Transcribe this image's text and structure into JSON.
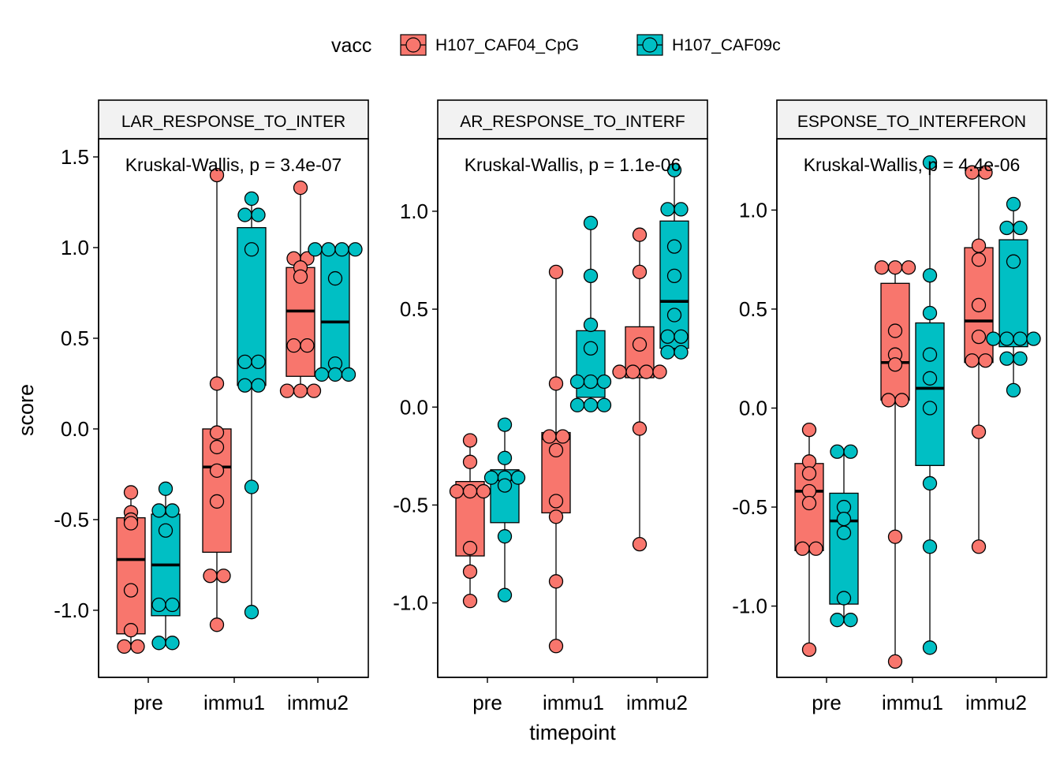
{
  "legend": {
    "title": "vacc",
    "items": [
      {
        "name": "H107_CAF04_CpG",
        "color": "#F8766D"
      },
      {
        "name": "H107_CAF09c",
        "color": "#00BFC4"
      }
    ]
  },
  "chart_data": {
    "type": "boxplot",
    "xlabel": "timepoint",
    "ylabel": "score",
    "categories": [
      "pre",
      "immu1",
      "immu2"
    ],
    "groups": [
      "H107_CAF04_CpG",
      "H107_CAF09c"
    ],
    "colors": {
      "H107_CAF04_CpG": "#F8766D",
      "H107_CAF09c": "#00BFC4"
    },
    "panels": [
      {
        "strip": "LAR_RESPONSE_TO_INTER",
        "stat": "Kruskal-Wallis, p = 3.4e-07",
        "ylim": [
          -1.37,
          1.6
        ],
        "yticks": [
          1.5,
          1.0,
          0.5,
          0.0,
          -0.5,
          -1.0
        ],
        "ytick_labels": [
          "1.5",
          "1.0",
          "0.5",
          "0.0",
          "-0.5",
          "-1.0"
        ],
        "boxes": [
          {
            "category": "pre",
            "group": "H107_CAF04_CpG",
            "q1": -1.13,
            "median": -0.72,
            "q3": -0.49,
            "lo": -1.2,
            "hi": -0.35,
            "points": [
              -0.35,
              -0.46,
              -0.5,
              -0.52,
              -0.89,
              -1.11,
              -1.2,
              -1.2
            ]
          },
          {
            "category": "pre",
            "group": "H107_CAF09c",
            "q1": -1.03,
            "median": -0.75,
            "q3": -0.47,
            "lo": -1.18,
            "hi": -0.33,
            "points": [
              -0.33,
              -0.45,
              -0.45,
              -0.56,
              -0.97,
              -0.97,
              -1.18,
              -1.18
            ]
          },
          {
            "category": "immu1",
            "group": "H107_CAF04_CpG",
            "q1": -0.68,
            "median": -0.21,
            "q3": 0.0,
            "lo": -1.08,
            "hi": 1.4,
            "points": [
              1.4,
              0.25,
              -0.02,
              -0.1,
              -0.23,
              -0.4,
              -0.81,
              -0.81,
              -1.08
            ]
          },
          {
            "category": "immu1",
            "group": "H107_CAF09c",
            "q1": 0.24,
            "median": 0.37,
            "q3": 1.11,
            "lo": -1.01,
            "hi": 1.27,
            "points": [
              1.27,
              1.18,
              1.18,
              0.99,
              0.37,
              0.37,
              0.24,
              0.24,
              -0.32,
              -1.01
            ]
          },
          {
            "category": "immu2",
            "group": "H107_CAF04_CpG",
            "q1": 0.29,
            "median": 0.65,
            "q3": 0.89,
            "lo": 0.21,
            "hi": 1.33,
            "points": [
              1.33,
              0.94,
              0.94,
              0.89,
              0.84,
              0.46,
              0.46,
              0.21,
              0.21,
              0.21
            ]
          },
          {
            "category": "immu2",
            "group": "H107_CAF09c",
            "q1": 0.3,
            "median": 0.59,
            "q3": 0.99,
            "lo": 0.3,
            "hi": 0.99,
            "points": [
              0.99,
              0.99,
              0.99,
              0.99,
              0.83,
              0.36,
              0.3,
              0.3,
              0.3
            ]
          }
        ]
      },
      {
        "strip": "AR_RESPONSE_TO_INTERF",
        "stat": "Kruskal-Wallis, p = 1.1e-06",
        "ylim": [
          -1.38,
          1.37
        ],
        "yticks": [
          1.0,
          0.5,
          0.0,
          -0.5,
          -1.0
        ],
        "ytick_labels": [
          "1.0",
          "0.5",
          "0.0",
          "-0.5",
          "-1.0"
        ],
        "boxes": [
          {
            "category": "pre",
            "group": "H107_CAF04_CpG",
            "q1": -0.76,
            "median": -0.43,
            "q3": -0.38,
            "lo": -0.99,
            "hi": -0.17,
            "points": [
              -0.17,
              -0.28,
              -0.43,
              -0.43,
              -0.43,
              -0.72,
              -0.84,
              -0.99
            ]
          },
          {
            "category": "pre",
            "group": "H107_CAF09c",
            "q1": -0.59,
            "median": -0.37,
            "q3": -0.32,
            "lo": -0.96,
            "hi": -0.09,
            "points": [
              -0.09,
              -0.26,
              -0.36,
              -0.36,
              -0.36,
              -0.4,
              -0.66,
              -0.96
            ]
          },
          {
            "category": "immu1",
            "group": "H107_CAF04_CpG",
            "q1": -0.54,
            "median": -0.16,
            "q3": -0.13,
            "lo": -1.22,
            "hi": 0.69,
            "points": [
              0.69,
              0.12,
              -0.15,
              -0.15,
              -0.22,
              -0.48,
              -0.56,
              -0.89,
              -1.22
            ]
          },
          {
            "category": "immu1",
            "group": "H107_CAF09c",
            "q1": 0.05,
            "median": 0.13,
            "q3": 0.39,
            "lo": 0.01,
            "hi": 0.94,
            "points": [
              0.94,
              0.67,
              0.42,
              0.3,
              0.13,
              0.13,
              0.13,
              0.01,
              0.01,
              0.01
            ]
          },
          {
            "category": "immu2",
            "group": "H107_CAF04_CpG",
            "q1": 0.15,
            "median": 0.18,
            "q3": 0.41,
            "lo": -0.7,
            "hi": 0.88,
            "points": [
              0.88,
              0.69,
              0.32,
              0.18,
              0.18,
              0.18,
              0.18,
              -0.11,
              -0.7
            ]
          },
          {
            "category": "immu2",
            "group": "H107_CAF09c",
            "q1": 0.3,
            "median": 0.54,
            "q3": 0.95,
            "lo": 0.28,
            "hi": 1.21,
            "points": [
              1.21,
              1.01,
              1.01,
              0.82,
              0.67,
              0.47,
              0.36,
              0.36,
              0.28,
              0.28
            ]
          }
        ]
      },
      {
        "strip": "ESPONSE_TO_INTERFERON",
        "stat": "Kruskal-Wallis, p = 4.4e-06",
        "ylim": [
          -1.36,
          1.36
        ],
        "yticks": [
          1.0,
          0.5,
          0.0,
          -0.5,
          -1.0
        ],
        "ytick_labels": [
          "1.0",
          "0.5",
          "0.0",
          "-0.5",
          "-1.0"
        ],
        "boxes": [
          {
            "category": "pre",
            "group": "H107_CAF04_CpG",
            "q1": -0.72,
            "median": -0.42,
            "q3": -0.28,
            "lo": -1.22,
            "hi": -0.11,
            "points": [
              -0.11,
              -0.27,
              -0.33,
              -0.42,
              -0.48,
              -0.71,
              -0.71,
              -1.22
            ]
          },
          {
            "category": "pre",
            "group": "H107_CAF09c",
            "q1": -0.99,
            "median": -0.57,
            "q3": -0.43,
            "lo": -1.07,
            "hi": -0.22,
            "points": [
              -0.22,
              -0.22,
              -0.5,
              -0.56,
              -0.63,
              -0.96,
              -1.07,
              -1.07
            ]
          },
          {
            "category": "immu1",
            "group": "H107_CAF04_CpG",
            "q1": 0.04,
            "median": 0.23,
            "q3": 0.63,
            "lo": -1.28,
            "hi": 0.71,
            "points": [
              0.71,
              0.71,
              0.71,
              0.39,
              0.27,
              0.22,
              0.04,
              0.04,
              -0.65,
              -1.28
            ]
          },
          {
            "category": "immu1",
            "group": "H107_CAF09c",
            "q1": -0.29,
            "median": 0.1,
            "q3": 0.43,
            "lo": -1.21,
            "hi": 1.24,
            "points": [
              1.24,
              0.67,
              0.48,
              0.27,
              0.15,
              0.0,
              -0.38,
              -0.7,
              -1.21
            ]
          },
          {
            "category": "immu2",
            "group": "H107_CAF04_CpG",
            "q1": 0.23,
            "median": 0.44,
            "q3": 0.81,
            "lo": -0.7,
            "hi": 1.19,
            "points": [
              1.19,
              1.19,
              0.82,
              0.75,
              0.52,
              0.36,
              0.24,
              0.24,
              -0.12,
              -0.7
            ]
          },
          {
            "category": "immu2",
            "group": "H107_CAF09c",
            "q1": 0.31,
            "median": 0.35,
            "q3": 0.85,
            "lo": 0.09,
            "hi": 1.03,
            "points": [
              1.03,
              0.91,
              0.91,
              0.74,
              0.35,
              0.35,
              0.35,
              0.35,
              0.25,
              0.25,
              0.09
            ]
          }
        ]
      }
    ]
  }
}
